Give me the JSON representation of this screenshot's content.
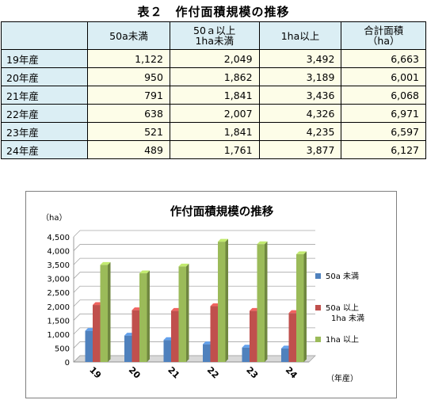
{
  "table": {
    "title": "表２　作付面積規模の推移",
    "headers": [
      "",
      "50a未満",
      "50ａ以上\n1ha未満",
      "1ha以上",
      "合計面積\n（ha）"
    ],
    "rows": [
      {
        "label": "19年産",
        "values": [
          "1,122",
          "2,049",
          "3,492",
          "6,663"
        ]
      },
      {
        "label": "20年産",
        "values": [
          "950",
          "1,862",
          "3,189",
          "6,001"
        ]
      },
      {
        "label": "21年産",
        "values": [
          "791",
          "1,841",
          "3,436",
          "6,068"
        ]
      },
      {
        "label": "22年産",
        "values": [
          "638",
          "2,007",
          "4,326",
          "6,971"
        ]
      },
      {
        "label": "23年産",
        "values": [
          "521",
          "1,841",
          "4,235",
          "6,597"
        ]
      },
      {
        "label": "24年産",
        "values": [
          "489",
          "1,761",
          "3,877",
          "6,127"
        ]
      }
    ]
  },
  "chart_data": {
    "type": "bar",
    "title": "作付面積規模の推移",
    "ylabel": "（ha）",
    "xlabel": "（年産）",
    "categories": [
      "19",
      "20",
      "21",
      "22",
      "23",
      "24"
    ],
    "ylim": [
      0,
      4500
    ],
    "yticks": [
      "0",
      "500",
      "1,000",
      "1,500",
      "2,000",
      "2,500",
      "3,000",
      "3,500",
      "4,000",
      "4,500"
    ],
    "grid": true,
    "legend_position": "right",
    "series": [
      {
        "name": "50a 未満",
        "color": "#4f81bd",
        "values": [
          1122,
          950,
          791,
          638,
          521,
          489
        ]
      },
      {
        "name": "50a 以上\n1ha 未満",
        "color": "#c0504d",
        "values": [
          2049,
          1862,
          1841,
          2007,
          1841,
          1761
        ]
      },
      {
        "name": "1ha 以上",
        "color": "#9bbb59",
        "values": [
          3492,
          3189,
          3436,
          4326,
          4235,
          3877
        ]
      }
    ]
  }
}
